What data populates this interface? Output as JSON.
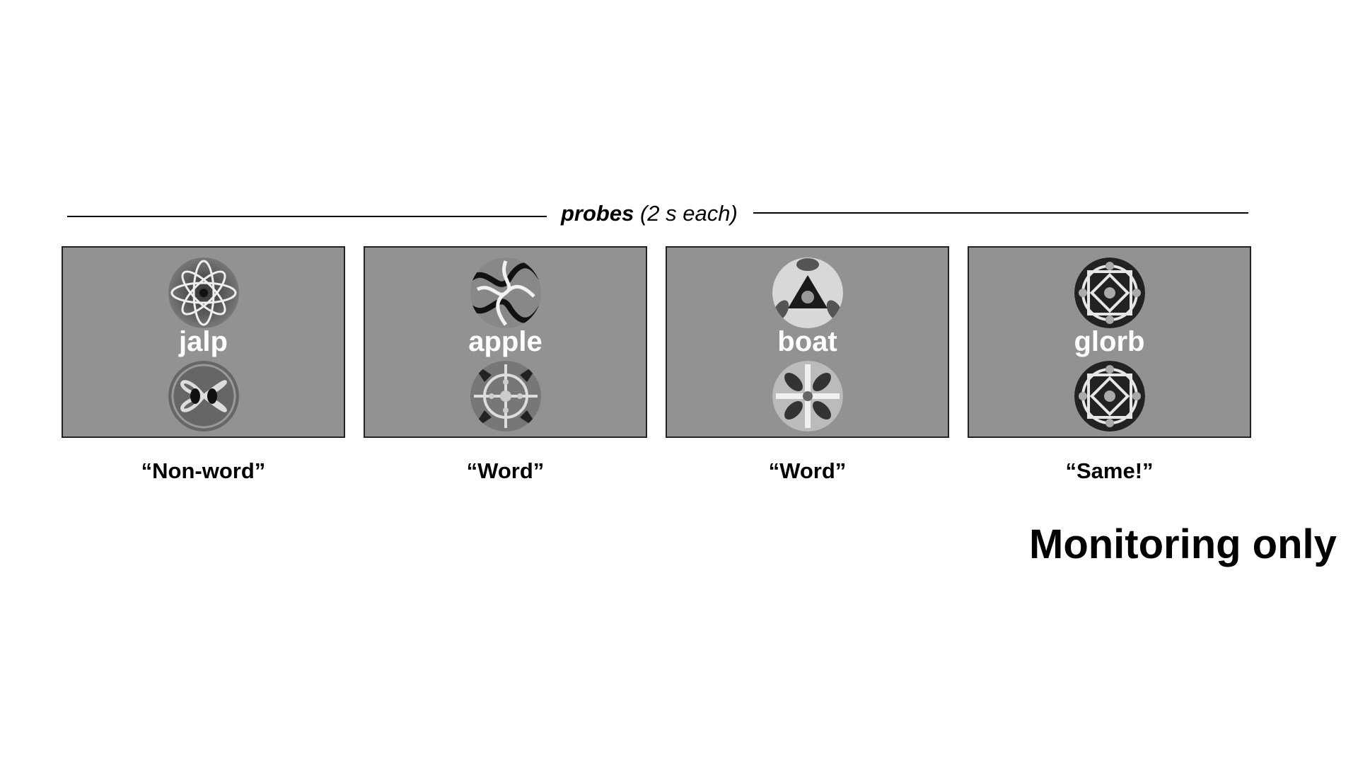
{
  "header": {
    "label_bold": "probes",
    "label_rest": " (2 s each)"
  },
  "probes": [
    {
      "word": "jalp",
      "response": "“Non-word”",
      "top_pattern": "flower-pattern-icon",
      "bottom_pattern": "swirl-pattern-icon"
    },
    {
      "word": "apple",
      "response": "“Word”",
      "top_pattern": "wave-pattern-icon",
      "bottom_pattern": "kaleidoscope-pattern-icon"
    },
    {
      "word": "boat",
      "response": "“Word”",
      "top_pattern": "triangle-pattern-icon",
      "bottom_pattern": "cross-pattern-icon"
    },
    {
      "word": "glorb",
      "response": "“Same!”",
      "top_pattern": "lattice-pattern-icon",
      "bottom_pattern": "lattice-pattern-icon"
    }
  ],
  "footer_note": "Monitoring only",
  "colors": {
    "panel_fill": "#929292",
    "word_text": "#ffffff"
  }
}
